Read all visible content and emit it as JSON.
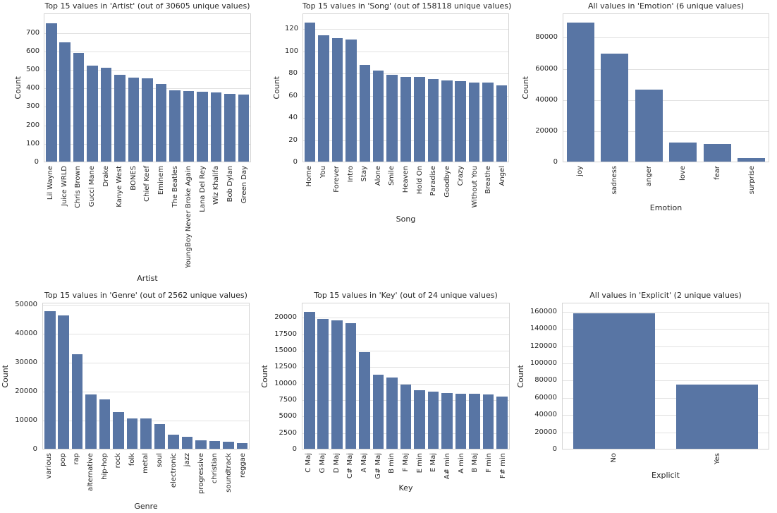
{
  "figure": {
    "background_color": "#ffffff",
    "bar_color": "#5875a4",
    "grid_color": "#e2e2e2",
    "spine_color": "#d4d4d4",
    "text_color": "#262626",
    "grid": true,
    "legend": false
  },
  "chart_data": [
    {
      "type": "bar",
      "title": "Top 15 values in 'Artist' (out of 30605 unique values)",
      "xlabel": "Artist",
      "ylabel": "Count",
      "categories": [
        "Lil Wayne",
        "Juice WRLD",
        "Chris Brown",
        "Gucci Mane",
        "Drake",
        "Kanye West",
        "BONES",
        "Chief Keef",
        "Eminem",
        "The Beatles",
        "YoungBoy Never Broke Again",
        "Lana Del Rey",
        "Wiz Khalifa",
        "Bob Dylan",
        "Green Day"
      ],
      "values": [
        755,
        650,
        593,
        525,
        514,
        472,
        458,
        455,
        423,
        390,
        387,
        383,
        379,
        371,
        366
      ],
      "yticks": [
        0,
        100,
        200,
        300,
        400,
        500,
        600,
        700
      ],
      "ylim": [
        0,
        805
      ]
    },
    {
      "type": "bar",
      "title": "Top 15 values in 'Song' (out of 158118 unique values)",
      "xlabel": "Song",
      "ylabel": "Count",
      "categories": [
        "Home",
        "You",
        "Forever",
        "Intro",
        "Stay",
        "Alone",
        "Smile",
        "Heaven",
        "Hold On",
        "Paradise",
        "Goodbye",
        "Crazy",
        "Without You",
        "Breathe",
        "Angel"
      ],
      "values": [
        126,
        115,
        112,
        111,
        88,
        83,
        79,
        77,
        77,
        75,
        74,
        73,
        72,
        72,
        69
      ],
      "yticks": [
        0,
        20,
        40,
        60,
        80,
        100,
        120
      ],
      "ylim": [
        0,
        134
      ]
    },
    {
      "type": "bar",
      "title": "All values in 'Emotion' (6 unique values)",
      "xlabel": "Emotion",
      "ylabel": "Count",
      "categories": [
        "joy",
        "sadness",
        "anger",
        "love",
        "fear",
        "surprise"
      ],
      "values": [
        90000,
        70000,
        46500,
        12400,
        11600,
        2100
      ],
      "yticks": [
        0,
        20000,
        40000,
        60000,
        80000
      ],
      "ylim": [
        0,
        95600
      ]
    },
    {
      "type": "bar",
      "title": "Top 15 values in 'Genre' (out of 2562 unique values)",
      "xlabel": "Genre",
      "ylabel": "Count",
      "categories": [
        "various",
        "pop",
        "rap",
        "alternative",
        "hip-hop",
        "rock",
        "folk",
        "metal",
        "soul",
        "electronic",
        "jazz",
        "progressive",
        "christian",
        "soundtrack",
        "reggae"
      ],
      "values": [
        48000,
        46600,
        33000,
        19000,
        17200,
        12800,
        10500,
        10500,
        8600,
        5000,
        4300,
        3000,
        2800,
        2400,
        1900
      ],
      "yticks": [
        0,
        10000,
        20000,
        30000,
        40000,
        50000
      ],
      "ylim": [
        0,
        50700
      ]
    },
    {
      "type": "bar",
      "title": "Top 15 values in 'Key' (out of 24 unique values)",
      "xlabel": "Key",
      "ylabel": "Count",
      "categories": [
        "C Maj",
        "G Maj",
        "D Maj",
        "C# Maj",
        "A Maj",
        "G# Maj",
        "B min",
        "F Maj",
        "E min",
        "E Maj",
        "A# min",
        "A min",
        "B Maj",
        "F min",
        "F# min"
      ],
      "values": [
        21000,
        19900,
        19700,
        19300,
        14800,
        11400,
        10900,
        9800,
        9000,
        8800,
        8600,
        8400,
        8400,
        8300,
        8000
      ],
      "yticks": [
        0,
        2500,
        5000,
        7500,
        10000,
        12500,
        15000,
        17500,
        20000
      ],
      "ylim": [
        0,
        22300
      ]
    },
    {
      "type": "bar",
      "title": "All values in 'Explicit' (2 unique values)",
      "xlabel": "Explicit",
      "ylabel": "Count",
      "categories": [
        "No",
        "Yes"
      ],
      "values": [
        159000,
        75500
      ],
      "yticks": [
        0,
        20000,
        40000,
        60000,
        80000,
        100000,
        120000,
        140000,
        160000
      ],
      "ylim": [
        0,
        170600
      ]
    }
  ]
}
